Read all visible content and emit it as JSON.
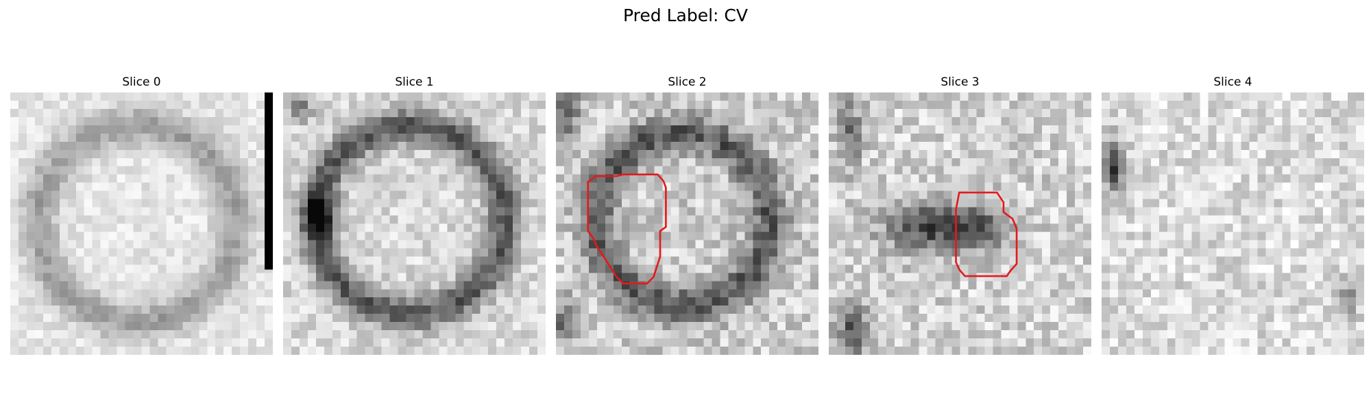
{
  "figure": {
    "title": "Pred Label: CV",
    "grid_size": 32,
    "slices": [
      {
        "title": "Slice 0",
        "pattern": "ring-soft",
        "seed": 11,
        "has_bar": true,
        "contour": null
      },
      {
        "title": "Slice 1",
        "pattern": "ring-strong",
        "seed": 23,
        "has_bar": false,
        "contour": null
      },
      {
        "title": "Slice 2",
        "pattern": "ring-medium",
        "seed": 37,
        "has_bar": false,
        "contour": [
          [
            7.4,
            10.2
          ],
          [
            8.2,
            10.0
          ],
          [
            12.4,
            10.0
          ],
          [
            13.1,
            10.8
          ],
          [
            13.4,
            11.6
          ],
          [
            13.4,
            16.4
          ],
          [
            12.7,
            16.9
          ],
          [
            12.7,
            20.0
          ],
          [
            11.9,
            22.5
          ],
          [
            11.1,
            23.3
          ],
          [
            8.2,
            23.3
          ],
          [
            7.4,
            22.5
          ],
          [
            5.8,
            20.0
          ],
          [
            5.0,
            18.8
          ],
          [
            4.5,
            17.7
          ],
          [
            3.9,
            16.9
          ],
          [
            3.9,
            10.9
          ],
          [
            4.9,
            10.2
          ]
        ],
        "contour_color": "#e31a1c"
      },
      {
        "title": "Slice 3",
        "pattern": "blob",
        "seed": 53,
        "has_bar": false,
        "contour": [
          [
            15.9,
            12.2
          ],
          [
            20.5,
            12.2
          ],
          [
            21.3,
            13.4
          ],
          [
            21.3,
            14.6
          ],
          [
            22.4,
            15.4
          ],
          [
            22.9,
            16.6
          ],
          [
            22.9,
            20.9
          ],
          [
            22.1,
            21.8
          ],
          [
            21.7,
            22.4
          ],
          [
            16.6,
            22.4
          ],
          [
            15.9,
            21.6
          ],
          [
            15.5,
            20.7
          ],
          [
            15.5,
            14.3
          ]
        ],
        "contour_color": "#e31a1c"
      },
      {
        "title": "Slice 4",
        "pattern": "noise",
        "seed": 71,
        "has_bar": false,
        "contour": null
      }
    ]
  }
}
